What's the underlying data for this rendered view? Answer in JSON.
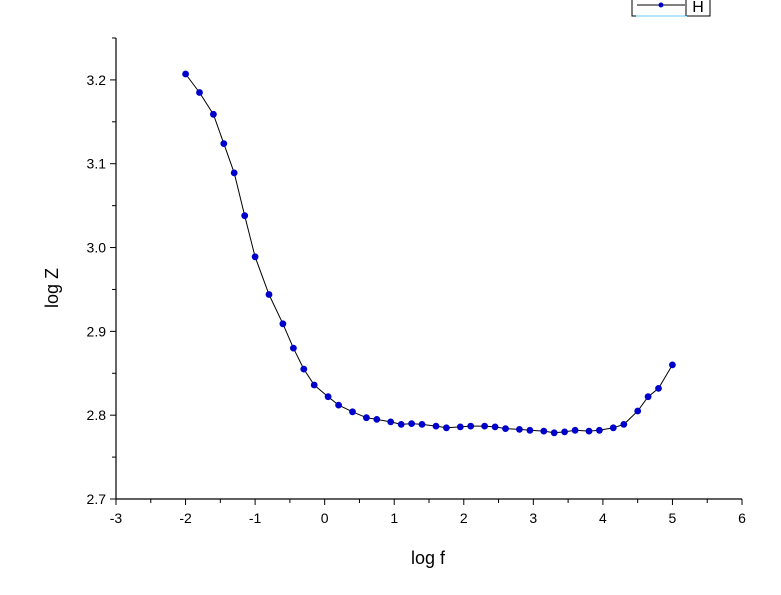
{
  "chart_data": {
    "type": "line",
    "xlabel": "log f",
    "ylabel": "log Z",
    "xlim": [
      -3,
      6
    ],
    "ylim": [
      2.7,
      3.25
    ],
    "x_ticks": [
      -3,
      -2,
      -1,
      0,
      1,
      2,
      3,
      4,
      5,
      6
    ],
    "y_ticks": [
      2.7,
      2.8,
      2.9,
      3.0,
      3.1,
      3.2
    ],
    "x_tick_labels": [
      "-3",
      "-2",
      "-1",
      "0",
      "1",
      "2",
      "3",
      "4",
      "5",
      "6"
    ],
    "y_tick_labels": [
      "2.7",
      "2.8",
      "2.9",
      "3.0",
      "3.1",
      "3.2"
    ],
    "grid": false,
    "legend_position": "top-right",
    "series": [
      {
        "name": "H",
        "color": "#0000CC",
        "line_color": "#000000",
        "x": [
          -2.0,
          -1.8,
          -1.6,
          -1.45,
          -1.3,
          -1.15,
          -1.0,
          -0.8,
          -0.6,
          -0.45,
          -0.3,
          -0.15,
          0.05,
          0.2,
          0.4,
          0.6,
          0.75,
          0.95,
          1.1,
          1.25,
          1.4,
          1.6,
          1.75,
          1.95,
          2.1,
          2.3,
          2.45,
          2.6,
          2.8,
          2.95,
          3.15,
          3.3,
          3.45,
          3.6,
          3.8,
          3.95,
          4.15,
          4.3,
          4.5,
          4.65,
          4.8,
          5.0
        ],
        "y": [
          3.207,
          3.185,
          3.159,
          3.124,
          3.089,
          3.038,
          2.989,
          2.944,
          2.909,
          2.88,
          2.855,
          2.836,
          2.822,
          2.812,
          2.804,
          2.797,
          2.795,
          2.792,
          2.789,
          2.79,
          2.789,
          2.787,
          2.785,
          2.786,
          2.787,
          2.787,
          2.786,
          2.784,
          2.783,
          2.782,
          2.781,
          2.779,
          2.78,
          2.782,
          2.781,
          2.782,
          2.785,
          2.789,
          2.805,
          2.822,
          2.832,
          2.86
        ]
      }
    ]
  }
}
